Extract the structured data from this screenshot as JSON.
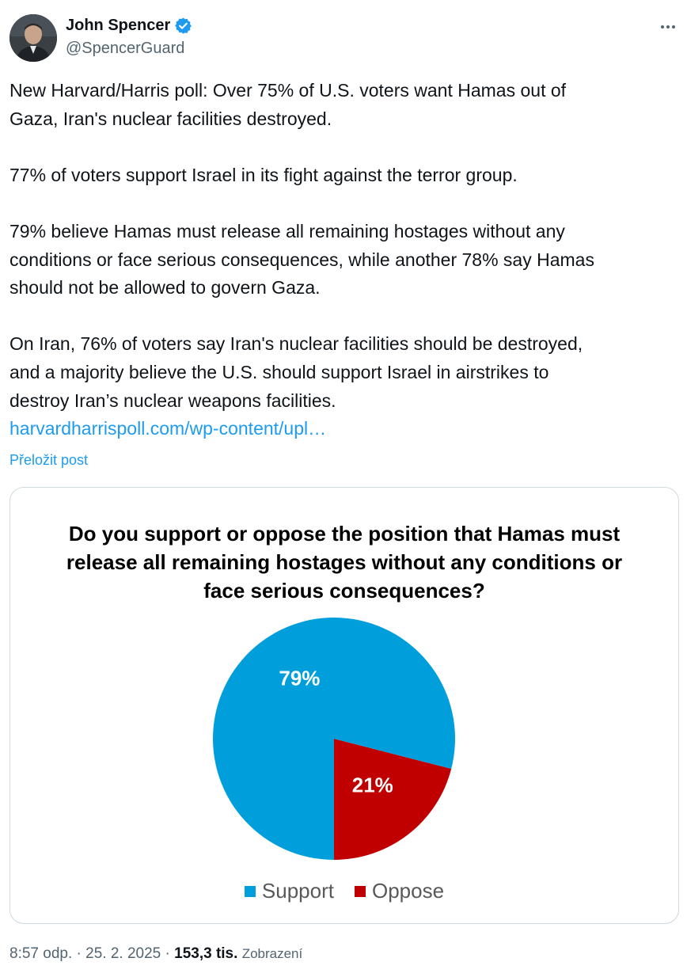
{
  "author": {
    "display_name": "John Spencer",
    "handle": "@SpencerGuard",
    "verified_icon": "verified-badge-icon",
    "more_icon": "more-options-icon"
  },
  "post": {
    "paragraphs": [
      [
        "New Harvard/Harris poll: Over 75% of U.S. voters want Hamas out of",
        "Gaza, Iran's nuclear facilities destroyed."
      ],
      [
        "77% of voters support Israel in its fight against the terror group."
      ],
      [
        "79% believe Hamas must release all remaining hostages without any",
        "conditions or face serious consequences, while another 78% say Hamas",
        "should not be allowed to govern Gaza."
      ],
      [
        "On Iran, 76% of voters say Iran's nuclear facilities should be destroyed,",
        "and a majority believe the U.S. should support Israel in airstrikes to",
        "destroy Iran’s nuclear weapons facilities."
      ]
    ],
    "link_text": "harvardharrispoll.com/wp-content/upl…",
    "translate_label": "Přeložit post"
  },
  "chart_data": {
    "type": "pie",
    "title": "Do you support or oppose the position that Hamas must release all remaining hostages without any conditions or face serious consequences?",
    "title_lines": [
      "Do you support or oppose the position that Hamas must",
      "release all remaining hostages without any conditions or",
      "face serious consequences?"
    ],
    "slices": [
      {
        "label": "Support",
        "value": 79,
        "display": "79%",
        "color": "#009fdb"
      },
      {
        "label": "Oppose",
        "value": 21,
        "display": "21%",
        "color": "#c00000"
      }
    ],
    "legend_position": "bottom"
  },
  "meta": {
    "time": "8:57 odp.",
    "separator": "·",
    "date": "25. 2. 2025",
    "views_count": "153,3 tis.",
    "views_label": "Zobrazení"
  },
  "colors": {
    "link": "#1d9bf0",
    "secondary_text": "#536471",
    "verified": "#1d9bf0"
  }
}
